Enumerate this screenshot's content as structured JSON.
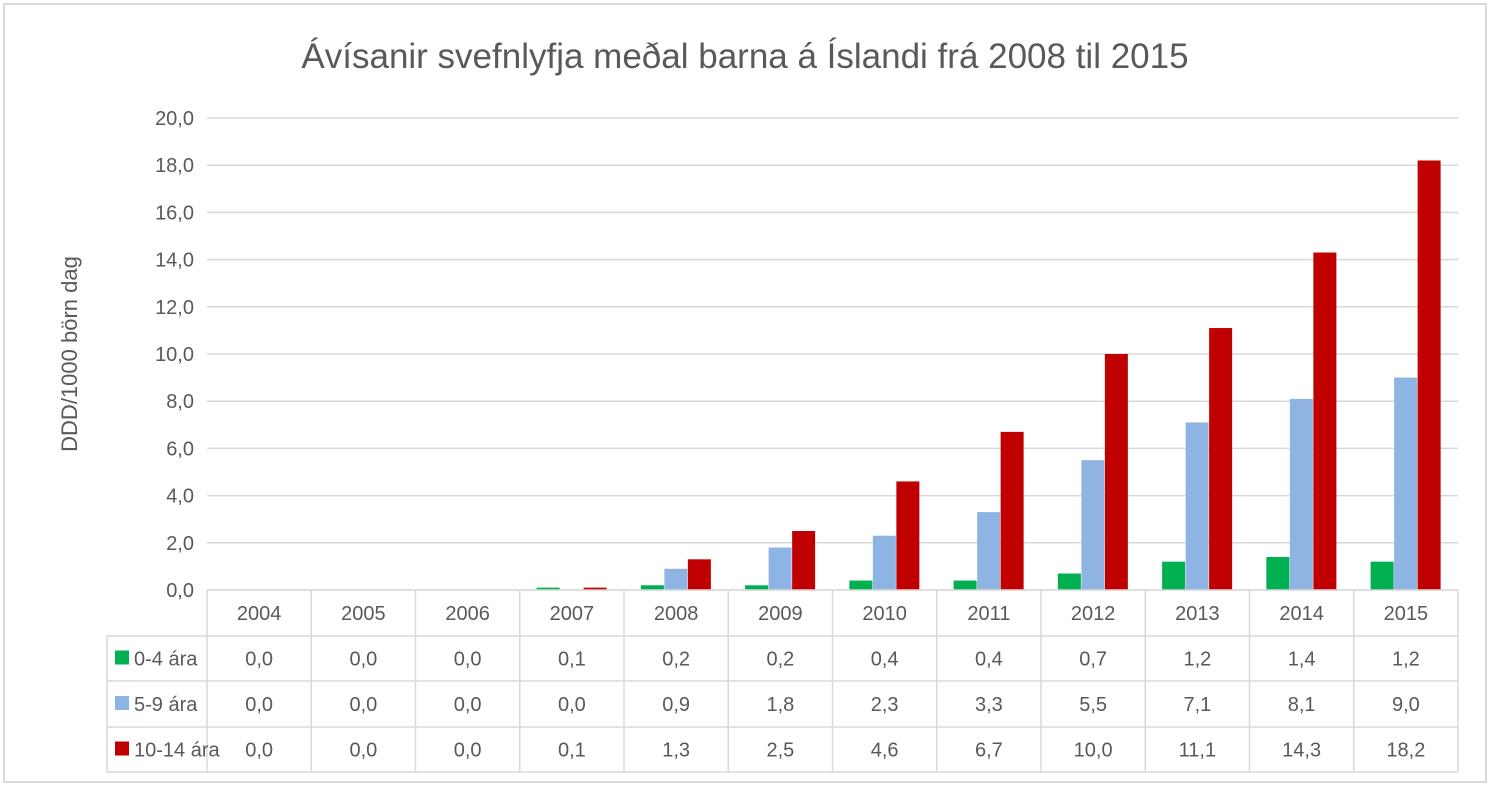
{
  "chart_data": {
    "type": "bar",
    "title": "Ávísanir svefnlyfja meðal barna á Íslandi frá 2008 til 2015",
    "xlabel": "",
    "ylabel": "DDD/1000 börn dag",
    "ylim": [
      0,
      20
    ],
    "ytick_step": 2,
    "yticks": [
      "0,0",
      "2,0",
      "4,0",
      "6,0",
      "8,0",
      "10,0",
      "12,0",
      "14,0",
      "16,0",
      "18,0",
      "20,0"
    ],
    "grid": true,
    "legend": "data-table",
    "categories": [
      "2004",
      "2005",
      "2006",
      "2007",
      "2008",
      "2009",
      "2010",
      "2011",
      "2012",
      "2013",
      "2014",
      "2015"
    ],
    "series": [
      {
        "name": "0-4 ára",
        "color": "#00b050",
        "values": [
          0.0,
          0.0,
          0.0,
          0.1,
          0.2,
          0.2,
          0.4,
          0.4,
          0.7,
          1.2,
          1.4,
          1.2
        ],
        "labels": [
          "0,0",
          "0,0",
          "0,0",
          "0,1",
          "0,2",
          "0,2",
          "0,4",
          "0,4",
          "0,7",
          "1,2",
          "1,4",
          "1,2"
        ]
      },
      {
        "name": "5-9 ára",
        "color": "#8eb4e3",
        "values": [
          0.0,
          0.0,
          0.0,
          0.0,
          0.9,
          1.8,
          2.3,
          3.3,
          5.5,
          7.1,
          8.1,
          9.0
        ],
        "labels": [
          "0,0",
          "0,0",
          "0,0",
          "0,0",
          "0,9",
          "1,8",
          "2,3",
          "3,3",
          "5,5",
          "7,1",
          "8,1",
          "9,0"
        ]
      },
      {
        "name": "10-14 ára",
        "color": "#c00000",
        "values": [
          0.0,
          0.0,
          0.0,
          0.1,
          1.3,
          2.5,
          4.6,
          6.7,
          10.0,
          11.1,
          14.3,
          18.2
        ],
        "labels": [
          "0,0",
          "0,0",
          "0,0",
          "0,1",
          "1,3",
          "2,5",
          "4,6",
          "6,7",
          "10,0",
          "11,1",
          "14,3",
          "18,2"
        ]
      }
    ]
  }
}
